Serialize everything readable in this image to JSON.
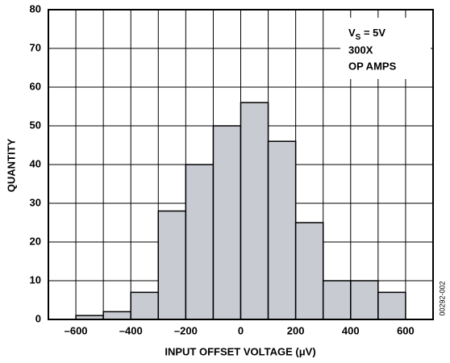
{
  "chart_data": {
    "type": "histogram",
    "ylabel": "QUANTITY",
    "xlabel": "INPUT OFFSET VOLTAGE (μV)",
    "annotation": {
      "symbol": "V",
      "subscript": "S",
      "condition": " = 5V",
      "line2": "300X",
      "line3": "OP AMPS"
    },
    "side_label": "00292-002",
    "bins": [
      -600,
      -500,
      -400,
      -300,
      -200,
      -100,
      0,
      100,
      200,
      300,
      400,
      500,
      600
    ],
    "values": [
      1,
      2,
      7,
      28,
      40,
      50,
      56,
      46,
      25,
      10,
      10,
      7
    ],
    "color": "#c9cbd3",
    "xlim": [
      -700,
      700
    ],
    "ylim": [
      0,
      80
    ],
    "xticks": [
      {
        "value": -600,
        "label": "–600"
      },
      {
        "value": -400,
        "label": "–400"
      },
      {
        "value": -200,
        "label": "–200"
      },
      0,
      200,
      400,
      600
    ],
    "x_minor_grid": [
      -700,
      -500,
      -300,
      -100,
      100,
      300,
      500,
      700
    ],
    "yticks": [
      0,
      10,
      20,
      30,
      40,
      50,
      60,
      70,
      80
    ],
    "grid": true
  }
}
